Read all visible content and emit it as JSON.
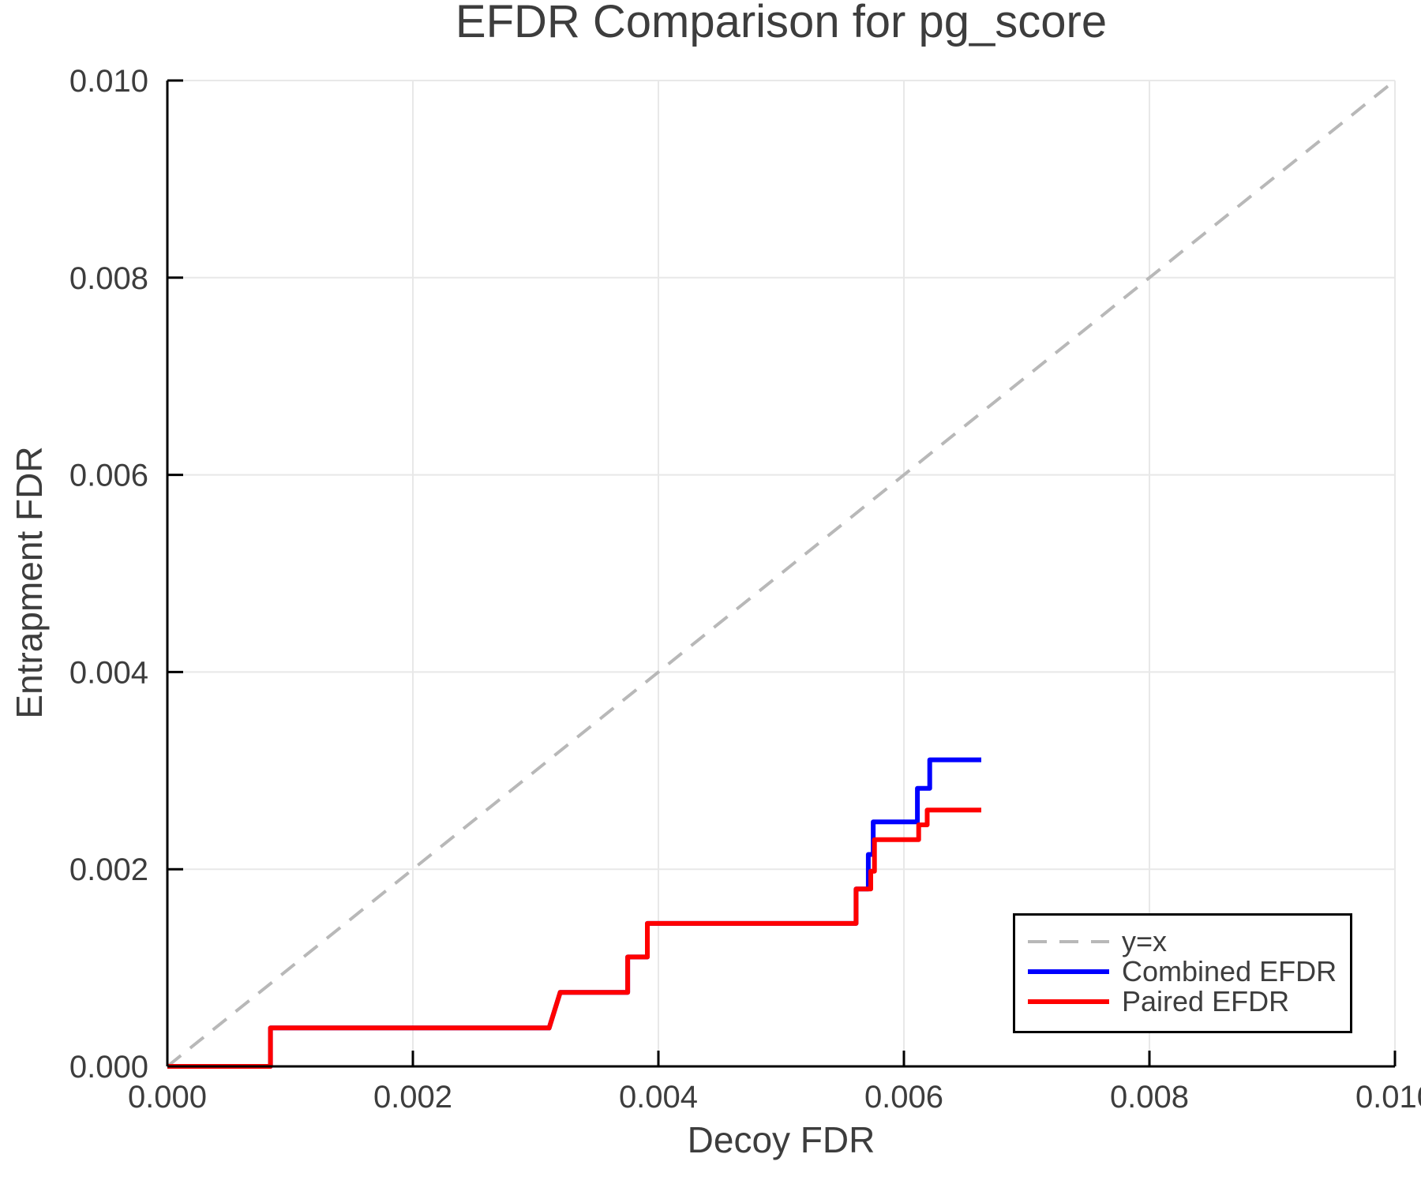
{
  "chart_data": {
    "type": "line",
    "title": "EFDR Comparison for pg_score",
    "xlabel": "Decoy FDR",
    "ylabel": "Entrapment FDR",
    "xlim": [
      0.0,
      0.01
    ],
    "ylim": [
      0.0,
      0.01
    ],
    "grid": true,
    "legend_position": "bottom-right",
    "xticks": {
      "values": [
        0.0,
        0.002,
        0.004,
        0.006,
        0.008,
        0.01
      ],
      "labels": [
        "0.000",
        "0.002",
        "0.004",
        "0.006",
        "0.008",
        "0.010"
      ]
    },
    "yticks": {
      "values": [
        0.0,
        0.002,
        0.004,
        0.006,
        0.008,
        0.01
      ],
      "labels": [
        "0.000",
        "0.002",
        "0.004",
        "0.006",
        "0.008",
        "0.010"
      ]
    },
    "colors": {
      "grid": "#e8e8e8",
      "axis": "#000000",
      "text": "#3d3d3d",
      "background": "#ffffff",
      "reference": "#b8b8b8",
      "combined": "#0000ff",
      "paired": "#ff0000"
    },
    "series": [
      {
        "name": "y=x",
        "color": "#b8b8b8",
        "dashed": true,
        "width": 4,
        "points": [
          [
            0.0,
            0.0
          ],
          [
            0.01,
            0.01
          ]
        ]
      },
      {
        "name": "Combined EFDR",
        "color": "#0000ff",
        "dashed": false,
        "width": 6,
        "points": [
          [
            0.0,
            0.0
          ],
          [
            0.00084,
            0.0
          ],
          [
            0.00084,
            0.00039
          ],
          [
            0.00311,
            0.00039
          ],
          [
            0.0032,
            0.00075
          ],
          [
            0.00375,
            0.00075
          ],
          [
            0.00375,
            0.00111
          ],
          [
            0.00391,
            0.00111
          ],
          [
            0.00391,
            0.00145
          ],
          [
            0.00561,
            0.00145
          ],
          [
            0.00561,
            0.0018
          ],
          [
            0.00571,
            0.0018
          ],
          [
            0.00571,
            0.00215
          ],
          [
            0.00575,
            0.00215
          ],
          [
            0.00575,
            0.00248
          ],
          [
            0.00611,
            0.00248
          ],
          [
            0.00611,
            0.00282
          ],
          [
            0.00621,
            0.00282
          ],
          [
            0.00621,
            0.00311
          ],
          [
            0.00663,
            0.00311
          ]
        ]
      },
      {
        "name": "Paired EFDR",
        "color": "#ff0000",
        "dashed": false,
        "width": 6,
        "points": [
          [
            0.0,
            0.0
          ],
          [
            0.00084,
            0.0
          ],
          [
            0.00084,
            0.00039
          ],
          [
            0.00311,
            0.00039
          ],
          [
            0.0032,
            0.00075
          ],
          [
            0.00375,
            0.00075
          ],
          [
            0.00375,
            0.00111
          ],
          [
            0.00391,
            0.00111
          ],
          [
            0.00391,
            0.00145
          ],
          [
            0.00561,
            0.00145
          ],
          [
            0.00561,
            0.0018
          ],
          [
            0.00573,
            0.0018
          ],
          [
            0.00573,
            0.00198
          ],
          [
            0.00576,
            0.00198
          ],
          [
            0.00576,
            0.0023
          ],
          [
            0.00612,
            0.0023
          ],
          [
            0.00612,
            0.00245
          ],
          [
            0.00619,
            0.00245
          ],
          [
            0.00619,
            0.0026
          ],
          [
            0.00663,
            0.0026
          ]
        ]
      }
    ]
  }
}
